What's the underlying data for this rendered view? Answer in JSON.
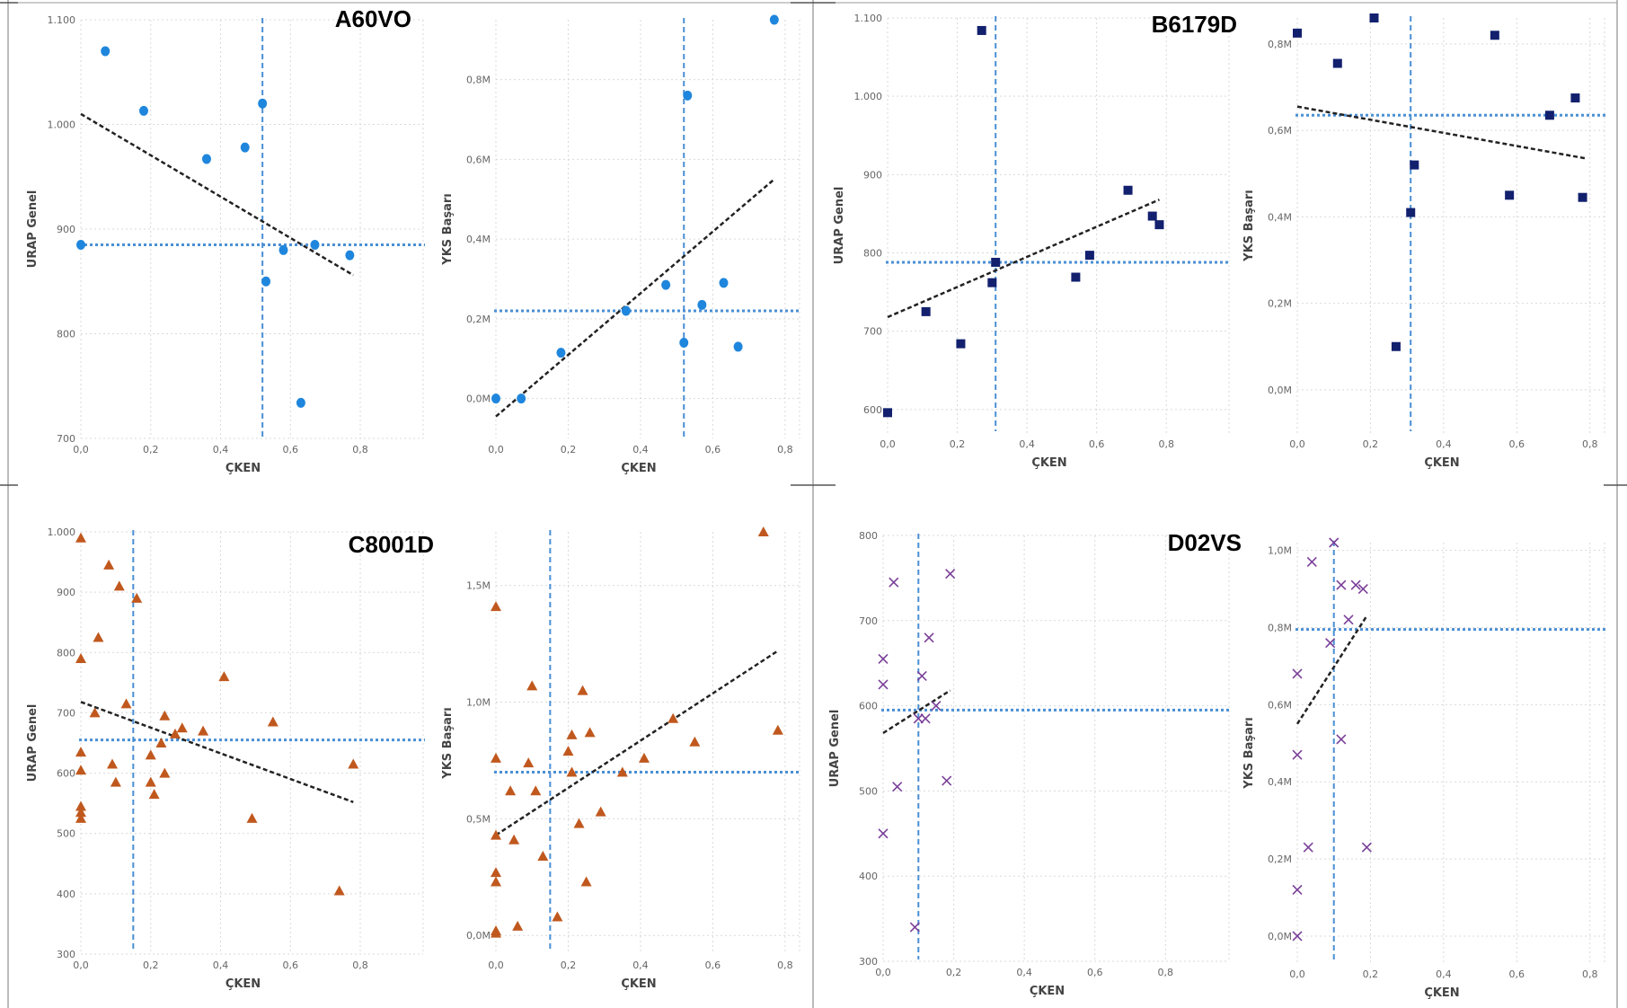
{
  "colors": {
    "blue": "#1f86dd",
    "navy": "#12206e",
    "orange": "#c0581e",
    "purple": "#7a3f99",
    "ref": "#4a8fd4",
    "trend": "#222222",
    "grid": "#d9d9d9",
    "frame": "#777777"
  },
  "panels": [
    {
      "title": "A60VO",
      "marker": "circle",
      "color": "#1f86dd"
    },
    {
      "title": "B6179D",
      "marker": "square",
      "color": "#12206e"
    },
    {
      "title": "C8001D",
      "marker": "triangle",
      "color": "#c0581e"
    },
    {
      "title": "D02VS",
      "marker": "x",
      "color": "#7a3f99"
    }
  ],
  "chart_data": [
    {
      "panel": "A60VO",
      "type": "scatter",
      "xlabel": "ÇKEN",
      "ylabel": "URAP Genel",
      "xlim": [
        0,
        0.98
      ],
      "ylim": [
        700,
        1100
      ],
      "xticks": [
        "0,0",
        "0,2",
        "0,4",
        "0,6",
        "0,8"
      ],
      "xtick_values": [
        0,
        0.2,
        0.4,
        0.6,
        0.8
      ],
      "yticks": [
        "700",
        "800",
        "900",
        "1.000",
        "1.100"
      ],
      "ytick_values": [
        700,
        800,
        900,
        1000,
        1100
      ],
      "x": [
        0.0,
        0.07,
        0.18,
        0.36,
        0.47,
        0.52,
        0.53,
        0.58,
        0.63,
        0.67,
        0.77
      ],
      "y": [
        885,
        1070,
        1013,
        967,
        978,
        1020,
        850,
        880,
        734,
        885,
        875
      ],
      "ref_x": 0.52,
      "ref_y": 885,
      "trend": [
        [
          0,
          1010
        ],
        [
          0.78,
          856
        ]
      ]
    },
    {
      "panel": "A60VO",
      "type": "scatter",
      "xlabel": "ÇKEN",
      "ylabel": "YKS Başarı",
      "xlim": [
        0,
        0.84
      ],
      "ylim": [
        -0.1,
        0.95
      ],
      "xticks": [
        "0,0",
        "0,2",
        "0,4",
        "0,6",
        "0,8"
      ],
      "xtick_values": [
        0,
        0.2,
        0.4,
        0.6,
        0.8
      ],
      "yticks": [
        "0,0M",
        "0,2M",
        "0,4M",
        "0,6M",
        "0,8M"
      ],
      "ytick_values": [
        0,
        0.2,
        0.4,
        0.6,
        0.8
      ],
      "x": [
        0.0,
        0.07,
        0.18,
        0.36,
        0.47,
        0.52,
        0.53,
        0.57,
        0.63,
        0.67,
        0.77
      ],
      "y": [
        0.0,
        0.0,
        0.115,
        0.22,
        0.285,
        0.14,
        0.76,
        0.235,
        0.29,
        0.13,
        0.95
      ],
      "ref_x": 0.52,
      "ref_y": 0.22,
      "trend": [
        [
          0,
          -0.045
        ],
        [
          0.77,
          0.55
        ]
      ]
    },
    {
      "panel": "B6179D",
      "type": "scatter",
      "xlabel": "ÇKEN",
      "ylabel": "URAP Genel",
      "xlim": [
        0,
        0.98
      ],
      "ylim": [
        570,
        1100
      ],
      "xticks": [
        "0,0",
        "0,2",
        "0,4",
        "0,6",
        "0,8"
      ],
      "xtick_values": [
        0,
        0.2,
        0.4,
        0.6,
        0.8
      ],
      "yticks": [
        "600",
        "700",
        "800",
        "900",
        "1.000",
        "1.100"
      ],
      "ytick_values": [
        600,
        700,
        800,
        900,
        1000,
        1100
      ],
      "x": [
        0.0,
        0.11,
        0.21,
        0.27,
        0.3,
        0.31,
        0.54,
        0.58,
        0.69,
        0.76,
        0.78
      ],
      "y": [
        596,
        725,
        684,
        1084,
        762,
        788,
        769,
        797,
        880,
        847,
        836
      ],
      "ref_x": 0.31,
      "ref_y": 788,
      "trend": [
        [
          0,
          718
        ],
        [
          0.78,
          868
        ]
      ]
    },
    {
      "panel": "B6179D",
      "type": "scatter",
      "xlabel": "ÇKEN",
      "ylabel": "YKS Başarı",
      "xlim": [
        0,
        0.84
      ],
      "ylim": [
        -0.1,
        0.86
      ],
      "xticks": [
        "0,0",
        "0,2",
        "0,4",
        "0,6",
        "0,8"
      ],
      "xtick_values": [
        0,
        0.2,
        0.4,
        0.6,
        0.8
      ],
      "yticks": [
        "0,0M",
        "0,2M",
        "0,4M",
        "0,6M",
        "0,8M"
      ],
      "ytick_values": [
        0,
        0.2,
        0.4,
        0.6,
        0.8
      ],
      "x": [
        0.0,
        0.11,
        0.21,
        0.27,
        0.31,
        0.32,
        0.54,
        0.58,
        0.69,
        0.76,
        0.78
      ],
      "y": [
        0.825,
        0.755,
        0.86,
        0.1,
        0.41,
        0.52,
        0.82,
        0.45,
        0.635,
        0.675,
        0.445
      ],
      "ref_x": 0.31,
      "ref_y": 0.635,
      "trend": [
        [
          0,
          0.655
        ],
        [
          0.79,
          0.535
        ]
      ]
    },
    {
      "panel": "C8001D",
      "type": "scatter",
      "xlabel": "ÇKEN",
      "ylabel": "URAP Genel",
      "xlim": [
        0,
        0.98
      ],
      "ylim": [
        300,
        1000
      ],
      "xticks": [
        "0,0",
        "0,2",
        "0,4",
        "0,6",
        "0,8"
      ],
      "xtick_values": [
        0,
        0.2,
        0.4,
        0.6,
        0.8
      ],
      "yticks": [
        "300",
        "400",
        "500",
        "600",
        "700",
        "800",
        "900",
        "1.000"
      ],
      "ytick_values": [
        300,
        400,
        500,
        600,
        700,
        800,
        900,
        1000
      ],
      "x": [
        0.0,
        0.0,
        0.0,
        0.0,
        0.0,
        0.0,
        0.0,
        0.04,
        0.05,
        0.08,
        0.09,
        0.1,
        0.11,
        0.13,
        0.16,
        0.2,
        0.2,
        0.21,
        0.23,
        0.24,
        0.24,
        0.27,
        0.29,
        0.35,
        0.41,
        0.49,
        0.55,
        0.74,
        0.78
      ],
      "y": [
        990,
        790,
        635,
        605,
        545,
        535,
        525,
        700,
        825,
        945,
        615,
        585,
        910,
        715,
        890,
        630,
        585,
        565,
        650,
        695,
        600,
        665,
        675,
        670,
        760,
        525,
        685,
        405,
        615
      ],
      "ref_x": 0.15,
      "ref_y": 655,
      "trend": [
        [
          0,
          718
        ],
        [
          0.78,
          552
        ]
      ]
    },
    {
      "panel": "C8001D",
      "type": "scatter",
      "xlabel": "ÇKEN",
      "ylabel": "YKS Başarı",
      "xlim": [
        0,
        0.84
      ],
      "ylim": [
        -0.08,
        1.73
      ],
      "xticks": [
        "0,0",
        "0,2",
        "0,4",
        "0,6",
        "0,8"
      ],
      "xtick_values": [
        0,
        0.2,
        0.4,
        0.6,
        0.8
      ],
      "yticks": [
        "0,0M",
        "0,5M",
        "1,0M",
        "1,5M"
      ],
      "ytick_values": [
        0,
        0.5,
        1.0,
        1.5
      ],
      "x": [
        0.0,
        0.0,
        0.0,
        0.0,
        0.0,
        0.0,
        0.0,
        0.04,
        0.05,
        0.06,
        0.09,
        0.1,
        0.11,
        0.13,
        0.17,
        0.2,
        0.21,
        0.21,
        0.23,
        0.24,
        0.25,
        0.26,
        0.29,
        0.35,
        0.41,
        0.49,
        0.55,
        0.74,
        0.78
      ],
      "y": [
        1.41,
        0.76,
        0.43,
        0.27,
        0.23,
        0.02,
        0.01,
        0.62,
        0.41,
        0.04,
        0.74,
        1.07,
        0.62,
        0.34,
        0.08,
        0.79,
        0.86,
        0.7,
        0.48,
        1.05,
        0.23,
        0.87,
        0.53,
        0.7,
        0.76,
        0.93,
        0.83,
        1.73,
        0.88
      ],
      "ref_x": 0.15,
      "ref_y": 0.7,
      "trend": [
        [
          0,
          0.43
        ],
        [
          0.78,
          1.22
        ]
      ]
    },
    {
      "panel": "D02VS",
      "type": "scatter",
      "xlabel": "ÇKEN",
      "ylabel": "URAP Genel",
      "xlim": [
        0,
        0.98
      ],
      "ylim": [
        300,
        800
      ],
      "xticks": [
        "0,0",
        "0,2",
        "0,4",
        "0,6",
        "0,8"
      ],
      "xtick_values": [
        0,
        0.2,
        0.4,
        0.6,
        0.8
      ],
      "yticks": [
        "300",
        "400",
        "500",
        "600",
        "700",
        "800"
      ],
      "ytick_values": [
        300,
        400,
        500,
        600,
        700,
        800
      ],
      "x": [
        0.0,
        0.0,
        0.0,
        0.03,
        0.04,
        0.09,
        0.1,
        0.11,
        0.12,
        0.13,
        0.15,
        0.18,
        0.19
      ],
      "y": [
        655,
        625,
        450,
        745,
        505,
        340,
        585,
        635,
        585,
        680,
        600,
        512,
        755
      ],
      "ref_x": 0.1,
      "ref_y": 595,
      "trend": [
        [
          0,
          568
        ],
        [
          0.19,
          618
        ]
      ]
    },
    {
      "panel": "D02VS",
      "type": "scatter",
      "xlabel": "ÇKEN",
      "ylabel": "YKS Başarı",
      "xlim": [
        0,
        0.84
      ],
      "ylim": [
        -0.07,
        1.02
      ],
      "xticks": [
        "0,0",
        "0,2",
        "0,4",
        "0,6",
        "0,8"
      ],
      "xtick_values": [
        0,
        0.2,
        0.4,
        0.6,
        0.8
      ],
      "yticks": [
        "0,0M",
        "0,2M",
        "0,4M",
        "0,6M",
        "0,8M",
        "1,0M"
      ],
      "ytick_values": [
        0,
        0.2,
        0.4,
        0.6,
        0.8,
        1.0
      ],
      "x": [
        0.0,
        0.0,
        0.0,
        0.0,
        0.03,
        0.04,
        0.09,
        0.1,
        0.12,
        0.12,
        0.14,
        0.16,
        0.18,
        0.19
      ],
      "y": [
        0.68,
        0.47,
        0.12,
        0.0,
        0.23,
        0.97,
        0.76,
        1.02,
        0.91,
        0.51,
        0.82,
        0.91,
        0.9,
        0.23
      ],
      "ref_x": 0.1,
      "ref_y": 0.795,
      "trend": [
        [
          0,
          0.55
        ],
        [
          0.19,
          0.83
        ]
      ]
    }
  ]
}
